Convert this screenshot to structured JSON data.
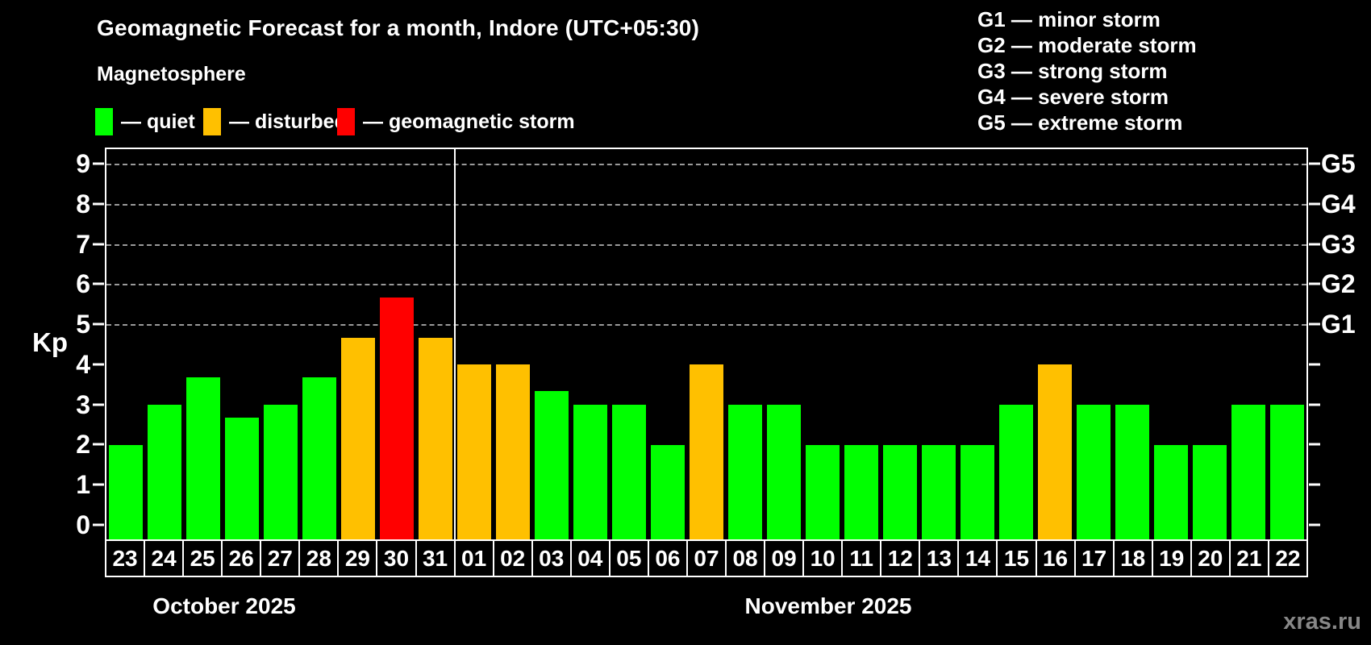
{
  "header": {
    "title": "Geomagnetic Forecast for a month, Indore (UTC+05:30)",
    "subtitle": "Magnetosphere"
  },
  "legend": {
    "items": [
      {
        "name": "quiet",
        "label": "— quiet",
        "color": "#00ff00"
      },
      {
        "name": "disturbed",
        "label": "— disturbed",
        "color": "#ffc000"
      },
      {
        "name": "geomagnetic-storm",
        "label": "— geomagnetic storm",
        "color": "#ff0000"
      }
    ]
  },
  "g_scale_legend": {
    "items": [
      "G1 — minor storm",
      "G2 — moderate storm",
      "G3 — strong storm",
      "G4 — severe storm",
      "G5 — extreme storm"
    ]
  },
  "watermark": "xras.ru",
  "chart_data": {
    "type": "bar",
    "title": "Geomagnetic Forecast for a month, Indore (UTC+05:30)",
    "xlabel": "",
    "ylabel": "Kp",
    "ylim": [
      0,
      9.4
    ],
    "y_ticks": [
      0,
      1,
      2,
      3,
      4,
      5,
      6,
      7,
      8,
      9
    ],
    "gridlines_kp": [
      5,
      6,
      7,
      8,
      9
    ],
    "grid": "dashed horizontal lines at Kp 5–9 only",
    "legend_position": "top-left",
    "right_axis_labels": [
      {
        "text": "G1",
        "kp": 5
      },
      {
        "text": "G2",
        "kp": 6
      },
      {
        "text": "G3",
        "kp": 7
      },
      {
        "text": "G4",
        "kp": 8
      },
      {
        "text": "G5",
        "kp": 9
      }
    ],
    "status_colors": {
      "quiet": "#00ff00",
      "disturbed": "#ffc000",
      "storm": "#ff0000"
    },
    "months": [
      {
        "label": "October 2025",
        "days": [
          {
            "date": "23",
            "kp": 2.0,
            "status": "quiet"
          },
          {
            "date": "24",
            "kp": 3.0,
            "status": "quiet"
          },
          {
            "date": "25",
            "kp": 3.67,
            "status": "quiet"
          },
          {
            "date": "26",
            "kp": 2.67,
            "status": "quiet"
          },
          {
            "date": "27",
            "kp": 3.0,
            "status": "quiet"
          },
          {
            "date": "28",
            "kp": 3.67,
            "status": "quiet"
          },
          {
            "date": "29",
            "kp": 4.67,
            "status": "disturbed"
          },
          {
            "date": "30",
            "kp": 5.67,
            "status": "storm"
          },
          {
            "date": "31",
            "kp": 4.67,
            "status": "disturbed"
          }
        ]
      },
      {
        "label": "November 2025",
        "days": [
          {
            "date": "01",
            "kp": 4.0,
            "status": "disturbed"
          },
          {
            "date": "02",
            "kp": 4.0,
            "status": "disturbed"
          },
          {
            "date": "03",
            "kp": 3.33,
            "status": "quiet"
          },
          {
            "date": "04",
            "kp": 3.0,
            "status": "quiet"
          },
          {
            "date": "05",
            "kp": 3.0,
            "status": "quiet"
          },
          {
            "date": "06",
            "kp": 2.0,
            "status": "quiet"
          },
          {
            "date": "07",
            "kp": 4.0,
            "status": "disturbed"
          },
          {
            "date": "08",
            "kp": 3.0,
            "status": "quiet"
          },
          {
            "date": "09",
            "kp": 3.0,
            "status": "quiet"
          },
          {
            "date": "10",
            "kp": 2.0,
            "status": "quiet"
          },
          {
            "date": "11",
            "kp": 2.0,
            "status": "quiet"
          },
          {
            "date": "12",
            "kp": 2.0,
            "status": "quiet"
          },
          {
            "date": "13",
            "kp": 2.0,
            "status": "quiet"
          },
          {
            "date": "14",
            "kp": 2.0,
            "status": "quiet"
          },
          {
            "date": "15",
            "kp": 3.0,
            "status": "quiet"
          },
          {
            "date": "16",
            "kp": 4.0,
            "status": "disturbed"
          },
          {
            "date": "17",
            "kp": 3.0,
            "status": "quiet"
          },
          {
            "date": "18",
            "kp": 3.0,
            "status": "quiet"
          },
          {
            "date": "19",
            "kp": 2.0,
            "status": "quiet"
          },
          {
            "date": "20",
            "kp": 2.0,
            "status": "quiet"
          },
          {
            "date": "21",
            "kp": 3.0,
            "status": "quiet"
          },
          {
            "date": "22",
            "kp": 3.0,
            "status": "quiet"
          }
        ]
      }
    ]
  }
}
